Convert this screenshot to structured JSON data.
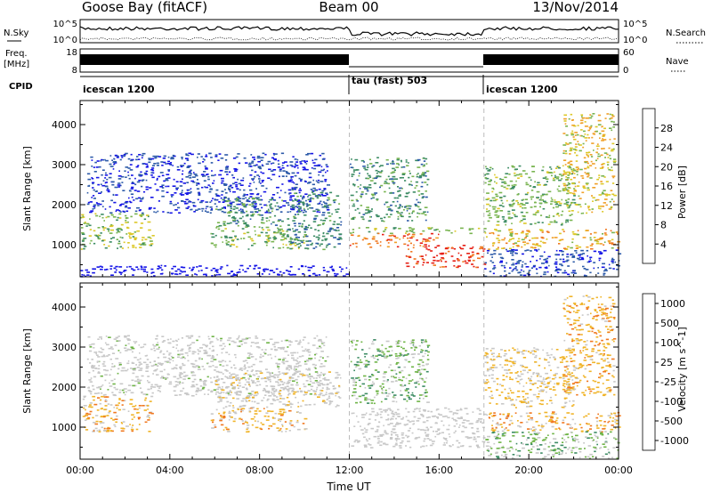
{
  "header": {
    "station": "Goose Bay (fitACF)",
    "beam": "Beam 00",
    "date": "13/Nov/2014"
  },
  "strips": {
    "nsky_label": "N.Sky",
    "nsky_tick_top": "10^5",
    "nsky_tick_bottom": "10^0",
    "nsearch_label": "N.Search",
    "nsearch_tick_top": "10^5",
    "nsearch_tick_bottom": "10^0",
    "freq_label_line1": "Freq.",
    "freq_label_line2": "[MHz]",
    "freq_tick_top": "18",
    "freq_tick_bottom": "8",
    "nave_label": "Nave",
    "nave_tick_top": "60",
    "nave_tick_bottom": "0",
    "cpid_label": "CPID",
    "cpid_segments": [
      {
        "label": "icescan 1200",
        "start_hour": 0,
        "end_hour": 12
      },
      {
        "label": "tau (fast) 503",
        "start_hour": 12,
        "end_hour": 18
      },
      {
        "label": "icescan 1200",
        "start_hour": 18,
        "end_hour": 24
      }
    ]
  },
  "chart_data": [
    {
      "type": "heatmap",
      "title": "",
      "xlabel": "Time UT",
      "ylabel": "Slant Range [km]",
      "xlim": [
        0,
        24
      ],
      "ylim": [
        200,
        4600
      ],
      "x_tick_values": [
        0,
        4,
        8,
        12,
        16,
        20,
        24
      ],
      "x_tick_labels": [
        "00:00",
        "04:00",
        "08:00",
        "12:00",
        "16:00",
        "20:00",
        "00:00"
      ],
      "y_tick_values": [
        1000,
        2000,
        3000,
        4000
      ],
      "y_tick_labels": [
        "1000",
        "2000",
        "3000",
        "4000"
      ],
      "colorbar": {
        "label": "Power [dB]",
        "range": [
          0,
          32
        ],
        "ticks": [
          4,
          8,
          12,
          16,
          20,
          24,
          28
        ],
        "tick_labels": [
          "4",
          "8",
          "12",
          "16",
          "20",
          "24",
          "28"
        ],
        "colors": [
          "#1414e6",
          "#2c5aa8",
          "#3c8c64",
          "#78b450",
          "#dcc828",
          "#f0a028",
          "#f07820",
          "#e61e14"
        ]
      },
      "regions": [
        {
          "t0": 0.0,
          "t1": 3.2,
          "r0": 900,
          "r1": 1800,
          "v0": 0.3,
          "v1": 0.6
        },
        {
          "t0": 0.3,
          "t1": 11.0,
          "r0": 1800,
          "r1": 3300,
          "v0": 0.05,
          "v1": 0.2
        },
        {
          "t0": 5.8,
          "t1": 10.0,
          "r0": 900,
          "r1": 1500,
          "v0": 0.3,
          "v1": 0.55
        },
        {
          "t0": 6.0,
          "t1": 9.0,
          "r0": 1500,
          "r1": 2200,
          "v0": 0.2,
          "v1": 0.45
        },
        {
          "t0": 9.2,
          "t1": 11.6,
          "r0": 900,
          "r1": 2400,
          "v0": 0.2,
          "v1": 0.4
        },
        {
          "t0": 0.0,
          "t1": 12.0,
          "r0": 220,
          "r1": 500,
          "v0": 0.02,
          "v1": 0.12
        },
        {
          "t0": 12.0,
          "t1": 18.0,
          "r0": 1300,
          "r1": 1450,
          "v0": 0.35,
          "v1": 0.55
        },
        {
          "t0": 12.0,
          "t1": 16.0,
          "r0": 950,
          "r1": 1300,
          "v0": 0.7,
          "v1": 0.95
        },
        {
          "t0": 14.5,
          "t1": 18.0,
          "r0": 450,
          "r1": 1000,
          "v0": 0.8,
          "v1": 1.0
        },
        {
          "t0": 12.0,
          "t1": 15.5,
          "r0": 1600,
          "r1": 3200,
          "v0": 0.2,
          "v1": 0.45
        },
        {
          "t0": 18.0,
          "t1": 24.0,
          "r0": 900,
          "r1": 1400,
          "v0": 0.45,
          "v1": 0.85
        },
        {
          "t0": 18.0,
          "t1": 22.0,
          "r0": 1500,
          "r1": 3000,
          "v0": 0.3,
          "v1": 0.55
        },
        {
          "t0": 21.5,
          "t1": 23.8,
          "r0": 1800,
          "r1": 4300,
          "v0": 0.4,
          "v1": 0.75
        },
        {
          "t0": 18.0,
          "t1": 24.0,
          "r0": 220,
          "r1": 900,
          "v0": 0.05,
          "v1": 0.25
        }
      ]
    },
    {
      "type": "heatmap",
      "title": "",
      "xlabel": "Time UT",
      "ylabel": "Slant Range [km]",
      "xlim": [
        0,
        24
      ],
      "ylim": [
        200,
        4600
      ],
      "x_tick_values": [
        0,
        4,
        8,
        12,
        16,
        20,
        24
      ],
      "x_tick_labels": [
        "00:00",
        "04:00",
        "08:00",
        "12:00",
        "16:00",
        "20:00",
        "00:00"
      ],
      "y_tick_values": [
        1000,
        2000,
        3000,
        4000
      ],
      "y_tick_labels": [
        "1000",
        "2000",
        "3000",
        "4000"
      ],
      "colorbar": {
        "label": "Velocity [m s^-1]",
        "ticks": [
          1000,
          500,
          100,
          25,
          -25,
          -100,
          -500,
          -1000
        ],
        "tick_labels": [
          "1000",
          "500",
          "100",
          "25",
          "-25",
          "-100",
          "-500",
          "-1000"
        ],
        "colors": [
          "#2846b4",
          "#3c8c64",
          "#6eb446",
          "#c8c8c8",
          "#c8c8c8",
          "#f0b428",
          "#f07820",
          "#e61e14"
        ]
      },
      "regions": [
        {
          "t0": 0.0,
          "t1": 3.2,
          "r0": 900,
          "r1": 1800,
          "v0": 0.55,
          "v1": 0.8
        },
        {
          "t0": 0.3,
          "t1": 11.0,
          "r0": 1800,
          "r1": 3300,
          "v0": 0.35,
          "v1": 0.6
        },
        {
          "t0": 5.8,
          "t1": 10.0,
          "r0": 900,
          "r1": 1500,
          "v0": 0.55,
          "v1": 0.8
        },
        {
          "t0": 6.0,
          "t1": 11.6,
          "r0": 1500,
          "r1": 2400,
          "v0": 0.4,
          "v1": 0.7
        },
        {
          "t0": 12.0,
          "t1": 18.0,
          "r0": 500,
          "r1": 1500,
          "v0": 0.38,
          "v1": 0.55
        },
        {
          "t0": 12.0,
          "t1": 15.5,
          "r0": 1600,
          "r1": 3200,
          "v0": 0.2,
          "v1": 0.5
        },
        {
          "t0": 18.0,
          "t1": 24.0,
          "r0": 900,
          "r1": 1400,
          "v0": 0.55,
          "v1": 0.85
        },
        {
          "t0": 18.0,
          "t1": 22.0,
          "r0": 1500,
          "r1": 3000,
          "v0": 0.5,
          "v1": 0.75
        },
        {
          "t0": 21.5,
          "t1": 23.8,
          "r0": 1800,
          "r1": 4300,
          "v0": 0.6,
          "v1": 0.8
        },
        {
          "t0": 18.0,
          "t1": 24.0,
          "r0": 220,
          "r1": 900,
          "v0": 0.2,
          "v1": 0.5
        }
      ]
    }
  ]
}
